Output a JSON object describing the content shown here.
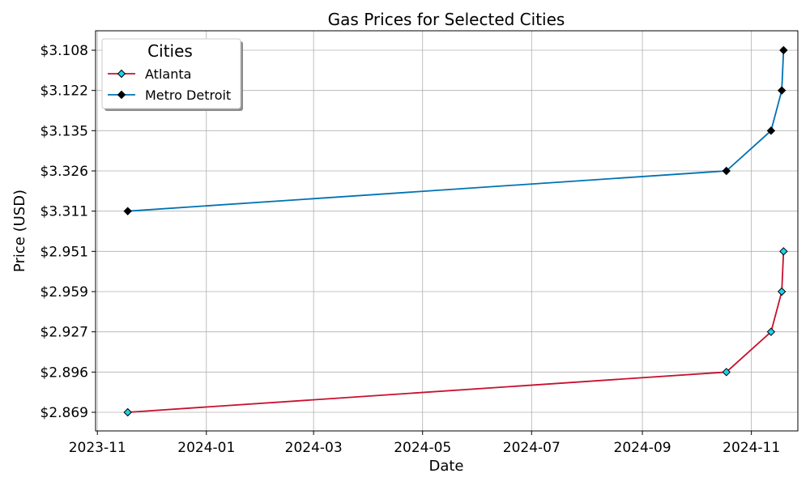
{
  "chart_data": {
    "type": "line",
    "title": "Gas Prices for Selected Cities",
    "xlabel": "Date",
    "ylabel": "Price (USD)",
    "x_tick_labels": [
      "2023-11",
      "2024-01",
      "2024-03",
      "2024-05",
      "2024-07",
      "2024-09",
      "2024-11"
    ],
    "x_tick_dates": [
      "2023-11-01",
      "2024-01-01",
      "2024-03-01",
      "2024-05-01",
      "2024-07-01",
      "2024-09-01",
      "2024-11-01"
    ],
    "xlim": [
      "2023-10-31",
      "2024-11-27"
    ],
    "y_categories": [
      "$2.869",
      "$2.896",
      "$2.927",
      "$2.959",
      "$2.951",
      "$3.311",
      "$3.326",
      "$3.135",
      "$3.122",
      "$3.108"
    ],
    "y_scale": "categorical",
    "grid": true,
    "legend": {
      "title": "Cities",
      "placement": "top-left"
    },
    "series": [
      {
        "name": "Atlanta",
        "color": "#c8102e",
        "marker_face": "#20d0e8",
        "marker": "diamond",
        "x": [
          "2023-11-18",
          "2024-10-18",
          "2024-11-12",
          "2024-11-18",
          "2024-11-19"
        ],
        "y": [
          "$2.869",
          "$2.896",
          "$2.927",
          "$2.959",
          "$2.951"
        ]
      },
      {
        "name": "Metro Detroit",
        "color": "#0072b2",
        "marker_face": "#000000",
        "marker": "diamond",
        "x": [
          "2023-11-18",
          "2024-10-18",
          "2024-11-12",
          "2024-11-18",
          "2024-11-19"
        ],
        "y": [
          "$3.311",
          "$3.326",
          "$3.135",
          "$3.122",
          "$3.108"
        ]
      }
    ]
  }
}
